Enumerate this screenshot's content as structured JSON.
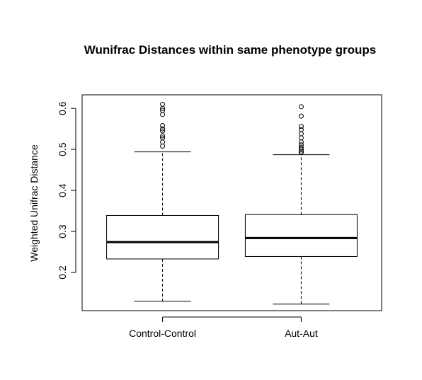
{
  "chart_data": {
    "type": "boxplot",
    "title": "Wunifrac Distances within same phenotype groups",
    "xlabel": "",
    "ylabel": "Weighted Unifrac Distance",
    "ylim": [
      0.107,
      0.633
    ],
    "yticks": [
      0.2,
      0.3,
      0.4,
      0.5,
      0.6
    ],
    "ytick_labels": [
      "0.2",
      "0.3",
      "0.4",
      "0.5",
      "0.6"
    ],
    "grid": false,
    "categories": [
      "Control-Control",
      "Aut-Aut"
    ],
    "boxes": [
      {
        "name": "Control-Control",
        "whisker_low": 0.13,
        "q1": 0.233,
        "median": 0.274,
        "q3": 0.339,
        "whisker_high": 0.494,
        "outliers": [
          0.61,
          0.6,
          0.595,
          0.585,
          0.558,
          0.55,
          0.545,
          0.533,
          0.528,
          0.518,
          0.508
        ]
      },
      {
        "name": "Aut-Aut",
        "whisker_low": 0.123,
        "q1": 0.239,
        "median": 0.284,
        "q3": 0.341,
        "whisker_high": 0.487,
        "outliers": [
          0.604,
          0.581,
          0.556,
          0.548,
          0.538,
          0.528,
          0.518,
          0.511,
          0.505,
          0.5,
          0.496,
          0.492
        ]
      }
    ]
  }
}
